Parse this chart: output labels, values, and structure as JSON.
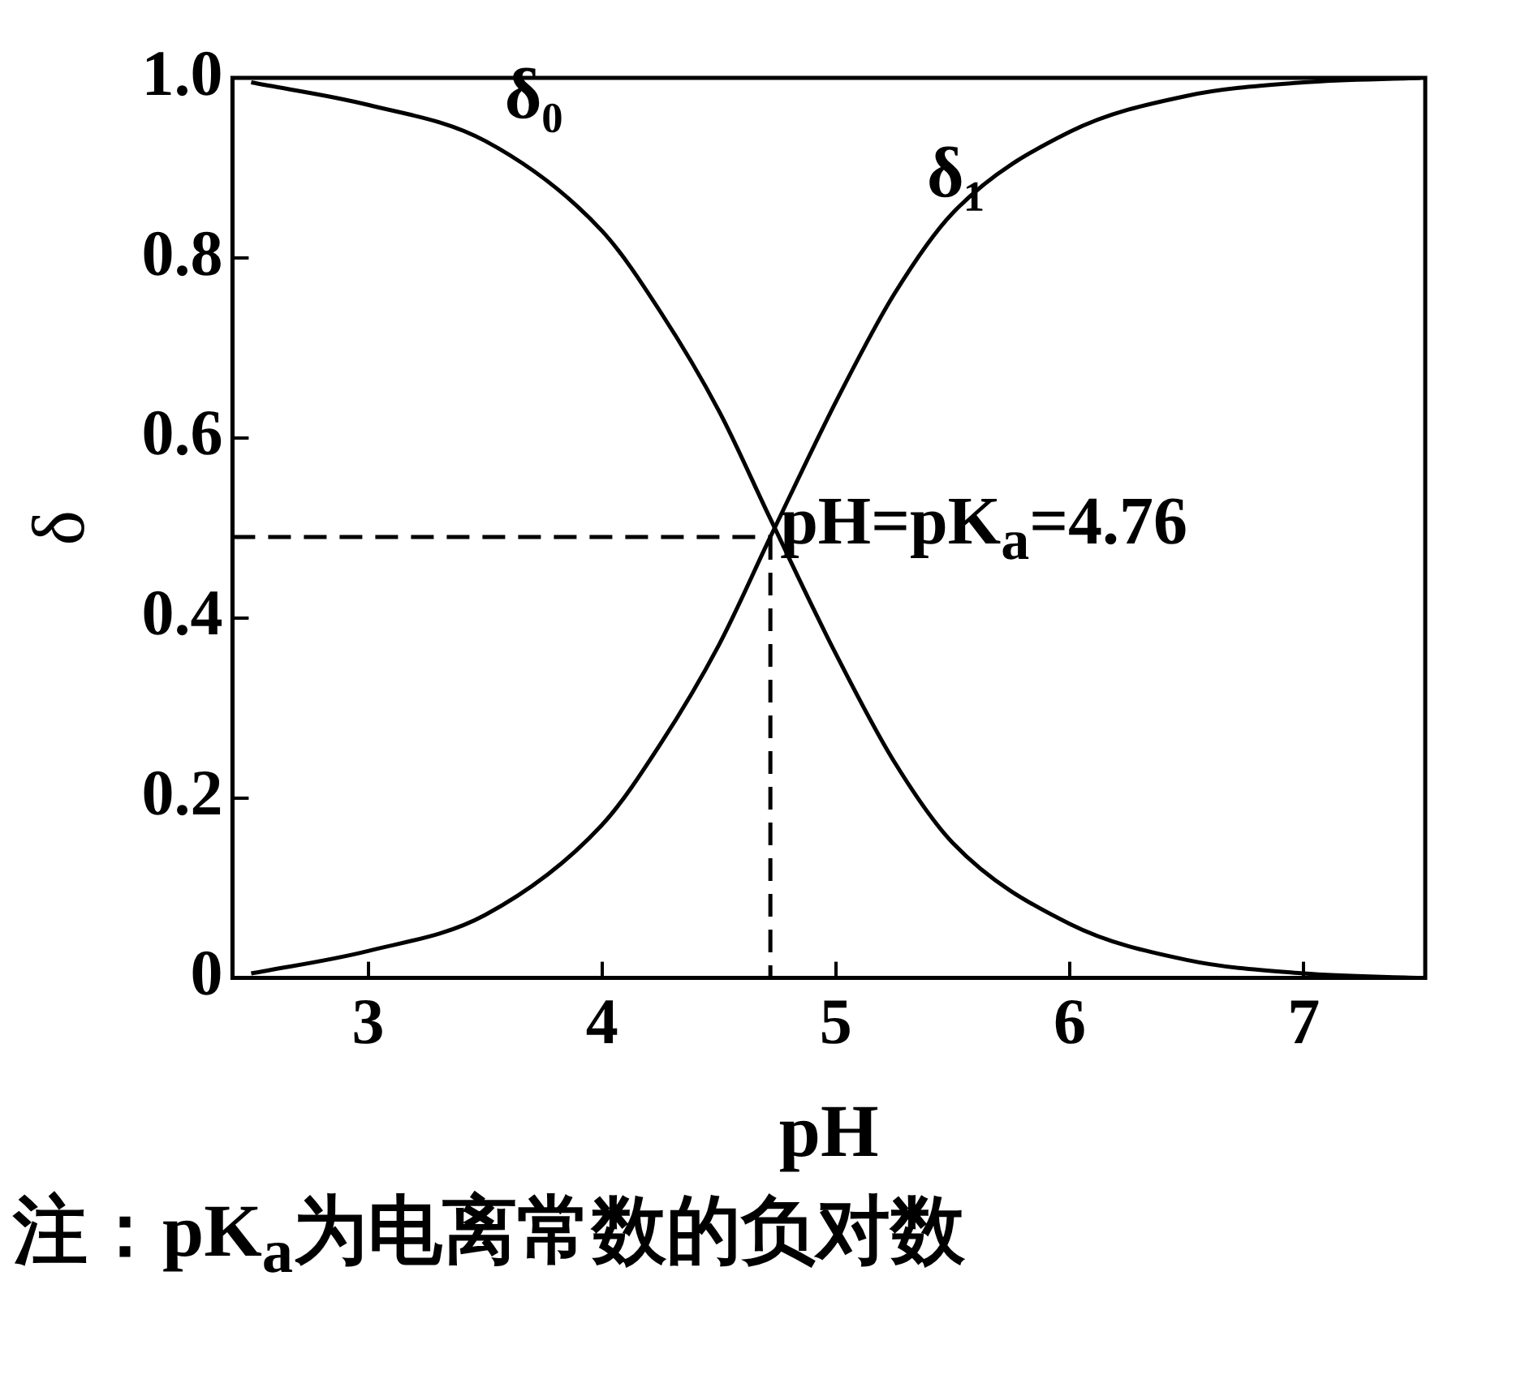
{
  "chart_data": {
    "type": "line",
    "xlabel": "pH",
    "ylabel": "δ",
    "x": [
      2.5,
      3,
      3.5,
      4,
      4.25,
      4.5,
      4.72,
      5,
      5.25,
      5.5,
      6,
      6.5,
      7,
      7.5
    ],
    "series": [
      {
        "name": "δ₀",
        "color": "#000000",
        "values": [
          0.995,
          0.97,
          0.93,
          0.83,
          0.74,
          0.63,
          0.51,
          0.36,
          0.24,
          0.15,
          0.06,
          0.02,
          0.005,
          0
        ]
      },
      {
        "name": "δ₁",
        "color": "#000000",
        "values": [
          0.005,
          0.03,
          0.07,
          0.17,
          0.26,
          0.37,
          0.49,
          0.64,
          0.76,
          0.85,
          0.94,
          0.98,
          0.995,
          1.0
        ]
      }
    ],
    "xlim": [
      2.42,
      7.52
    ],
    "xticks": [
      3,
      4,
      5,
      6,
      7
    ],
    "ylim": [
      0,
      1
    ],
    "yticks": [
      0,
      0.2,
      0.4,
      0.6,
      0.8,
      {
        "value": 1,
        "label": "1.0"
      }
    ],
    "grid": false,
    "legend": false,
    "marker": "none",
    "line_style": "solid",
    "annotations": [
      {
        "text": "pH=pK$_{a}$=4.76",
        "x": 4.72,
        "y": 0.49
      },
      "注：pK$_{a}$为电离常数的负对数"
    ]
  }
}
